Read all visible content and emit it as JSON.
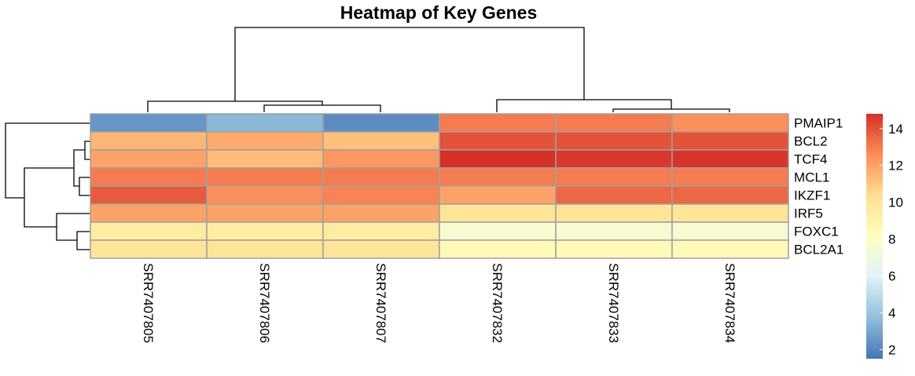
{
  "chart_data": {
    "type": "heatmap",
    "title": "Heatmap of Key Genes",
    "rows": [
      "PMAIP1",
      "BCL2",
      "TCF4",
      "MCL1",
      "IKZF1",
      "IRF5",
      "FOXC1",
      "BCL2A1"
    ],
    "columns": [
      "SRR7407805",
      "SRR7407806",
      "SRR7407807",
      "SRR7407832",
      "SRR7407833",
      "SRR7407834"
    ],
    "values": [
      [
        2.5,
        3.5,
        2.2,
        13.0,
        13.0,
        12.5
      ],
      [
        11.5,
        11.8,
        11.2,
        14.0,
        14.0,
        14.0
      ],
      [
        12.0,
        11.3,
        12.3,
        14.8,
        14.6,
        14.7
      ],
      [
        13.0,
        13.0,
        13.0,
        13.0,
        13.0,
        13.0
      ],
      [
        13.8,
        12.5,
        12.8,
        12.0,
        13.5,
        13.5
      ],
      [
        12.0,
        12.0,
        12.0,
        10.0,
        10.0,
        10.0
      ],
      [
        9.5,
        9.5,
        9.5,
        7.5,
        7.5,
        7.5
      ],
      [
        10.0,
        10.0,
        10.0,
        8.5,
        8.5,
        8.5
      ]
    ],
    "color_range": [
      1.5,
      14.8
    ],
    "colorbar_ticks": [
      2,
      4,
      6,
      8,
      10,
      12,
      14
    ],
    "colors": [
      "#4575b4",
      "#91bfdb",
      "#e0f3f8",
      "#ffffbf",
      "#fee090",
      "#fc8d59",
      "#d73027"
    ],
    "cell_border_color": "#a0a0a0",
    "legend_position": "right",
    "row_dendrogram": "clustered",
    "column_dendrogram": "clustered"
  }
}
